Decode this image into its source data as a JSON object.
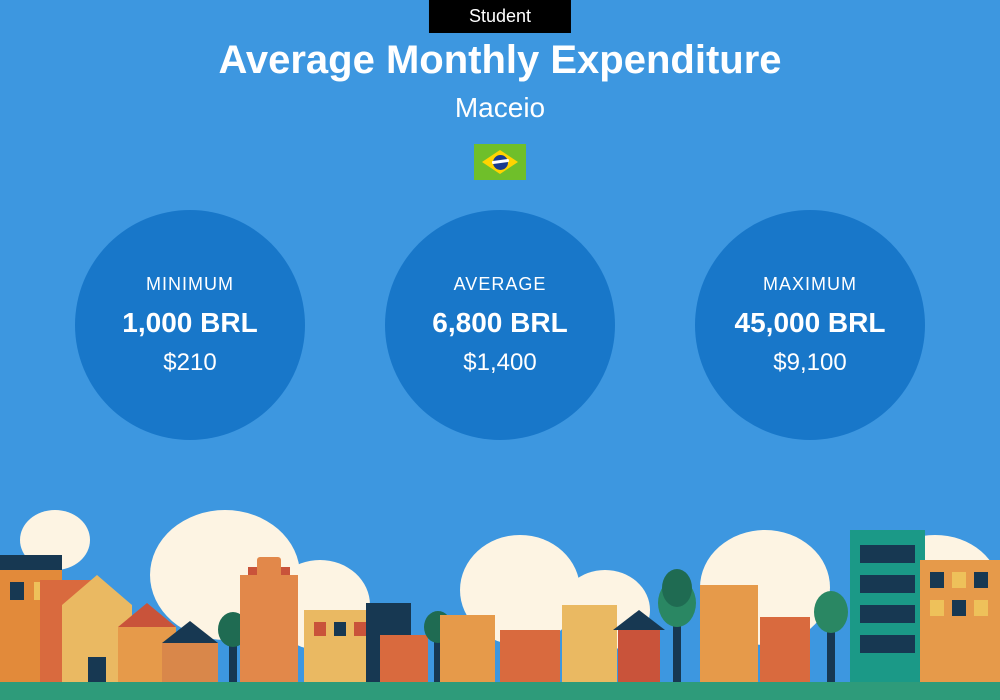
{
  "badge": "Student",
  "title": "Average Monthly Expenditure",
  "city": "Maceio",
  "flag": {
    "bg": "#6fbf2a",
    "diamond": "#ffd400",
    "circle": "#1a3a8f"
  },
  "colors": {
    "page_bg": "#3d97e0",
    "circle_bg": "#1877c9",
    "text": "#ffffff",
    "badge_bg": "#000000"
  },
  "stats": [
    {
      "label": "MINIMUM",
      "value": "1,000 BRL",
      "usd": "$210"
    },
    {
      "label": "AVERAGE",
      "value": "6,800 BRL",
      "usd": "$1,400"
    },
    {
      "label": "MAXIMUM",
      "value": "45,000 BRL",
      "usd": "$9,100"
    }
  ],
  "illustration": {
    "cloud_color": "#fdf4e3",
    "grass_color": "#2e9b7a",
    "building_palette": [
      "#e28a3a",
      "#d96a3e",
      "#eab962",
      "#e69a4a",
      "#c9533a",
      "#173852",
      "#1b9987",
      "#eec15a"
    ],
    "tree_palette": [
      "#1f6b52",
      "#2a8763",
      "#173852"
    ]
  }
}
